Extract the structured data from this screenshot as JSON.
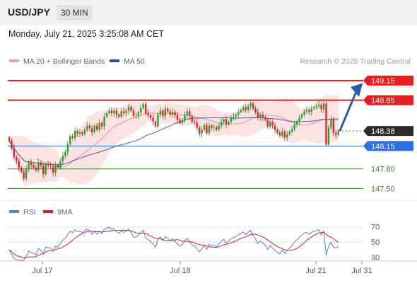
{
  "header": {
    "symbol": "USD/JPY",
    "timeframe": "30 MIN"
  },
  "datetime": "Monday, July 21, 2025 3:25:08 AM CET",
  "legend": {
    "ma20_label": "MA 20 + Bollinger Bands",
    "ma50_label": "MA 50",
    "rsi_label": "RSI",
    "ma9_label": "9MA",
    "ma20_color": "#f4a0a0",
    "ma50_color": "#2c4f8a",
    "rsi_color": "#5a7fd8",
    "ma9_color": "#e32020"
  },
  "copyright": "Research © 2025 Trading Central",
  "chart_data": {
    "type": "candlestick",
    "price_range": [
      147.44,
      149.3
    ],
    "rsi_range": [
      25,
      78
    ],
    "x_ticks": [
      "Jul 17",
      "Jul 18",
      "Jul 21",
      "Jul 31"
    ],
    "rsi_ticks": [
      "70",
      "50",
      "30"
    ],
    "levels": [
      {
        "label": "149.15",
        "value": 149.15,
        "kind": "resistance",
        "color": "#e81e1e"
      },
      {
        "label": "148.85",
        "value": 148.85,
        "kind": "resistance",
        "color": "#e81e1e"
      },
      {
        "label": "148.38",
        "value": 148.38,
        "kind": "last",
        "color": "#2b2b2b"
      },
      {
        "label": "148.15",
        "value": 148.15,
        "kind": "pivot",
        "color": "#2f6ee0"
      },
      {
        "label": "147.80",
        "value": 147.8,
        "kind": "support",
        "color": "#3a8a2a"
      },
      {
        "label": "147.50",
        "value": 147.5,
        "kind": "support",
        "color": "#3a8a2a"
      }
    ],
    "closes": [
      148.23,
      148.12,
      147.98,
      147.92,
      147.82,
      147.76,
      147.65,
      147.8,
      147.9,
      147.86,
      147.82,
      147.78,
      147.9,
      147.85,
      147.72,
      147.88,
      147.85,
      147.84,
      147.74,
      147.86,
      147.82,
      147.92,
      148.0,
      148.06,
      148.18,
      148.3,
      148.27,
      148.38,
      148.34,
      148.36,
      148.33,
      148.4,
      148.46,
      148.42,
      148.36,
      148.46,
      148.4,
      148.5,
      148.45,
      148.6,
      148.65,
      148.69,
      148.65,
      148.69,
      148.63,
      148.6,
      148.68,
      148.65,
      148.69,
      148.75,
      148.69,
      148.61,
      148.61,
      148.66,
      148.73,
      148.79,
      148.65,
      148.62,
      148.58,
      148.52,
      148.45,
      148.63,
      148.69,
      148.61,
      148.72,
      148.68,
      148.63,
      148.67,
      148.62,
      148.55,
      148.5,
      148.54,
      148.62,
      148.68,
      148.61,
      148.52,
      148.51,
      148.43,
      148.34,
      148.4,
      148.47,
      148.35,
      148.46,
      148.43,
      148.44,
      148.4,
      148.46,
      148.52,
      148.56,
      148.48,
      148.52,
      148.58,
      148.6,
      148.63,
      148.67,
      148.7,
      148.74,
      148.7,
      148.76,
      148.8,
      148.72,
      148.67,
      148.58,
      148.63,
      148.59,
      148.55,
      148.45,
      148.52,
      148.46,
      148.4,
      148.35,
      148.31,
      148.37,
      148.28,
      148.33,
      148.37,
      148.41,
      148.48,
      148.52,
      148.58,
      148.63,
      148.68,
      148.7,
      148.67,
      148.72,
      148.74,
      148.76,
      148.78,
      148.71,
      148.8,
      148.17,
      148.43,
      148.56,
      148.35,
      148.32,
      148.38
    ],
    "series": [
      {
        "name": "RSI"
      },
      {
        "name": "9MA"
      }
    ]
  }
}
